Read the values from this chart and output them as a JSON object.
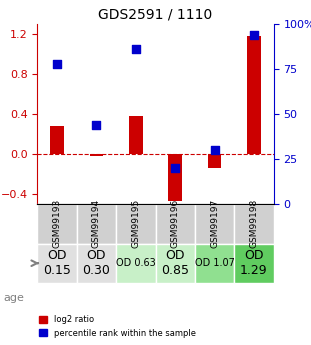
{
  "title": "GDS2591 / 1110",
  "samples": [
    "GSM99193",
    "GSM99194",
    "GSM99195",
    "GSM99196",
    "GSM99197",
    "GSM99198"
  ],
  "log2_ratio": [
    0.28,
    -0.02,
    0.38,
    -0.47,
    -0.14,
    1.18
  ],
  "percentile_rank": [
    0.78,
    0.44,
    0.86,
    0.2,
    0.3,
    0.94
  ],
  "od_values": [
    "OD\n0.15",
    "OD\n0.30",
    "OD 0.63",
    "OD\n0.85",
    "OD 1.07",
    "OD\n1.29"
  ],
  "od_colors": [
    "#e0e0e0",
    "#e0e0e0",
    "#c8f0c8",
    "#c8f0c8",
    "#90e090",
    "#60cc60"
  ],
  "od_fontsize": [
    9,
    9,
    7,
    9,
    7,
    9
  ],
  "ylim_left": [
    -0.5,
    1.3
  ],
  "ylim_right": [
    0,
    100
  ],
  "yticks_left": [
    -0.4,
    0.0,
    0.4,
    0.8,
    1.2
  ],
  "yticks_right": [
    0,
    25,
    50,
    75,
    100
  ],
  "hlines": [
    0.0,
    0.4,
    0.8
  ],
  "red_color": "#cc0000",
  "blue_color": "#0000cc",
  "bar_width": 0.35,
  "dot_size": 40
}
